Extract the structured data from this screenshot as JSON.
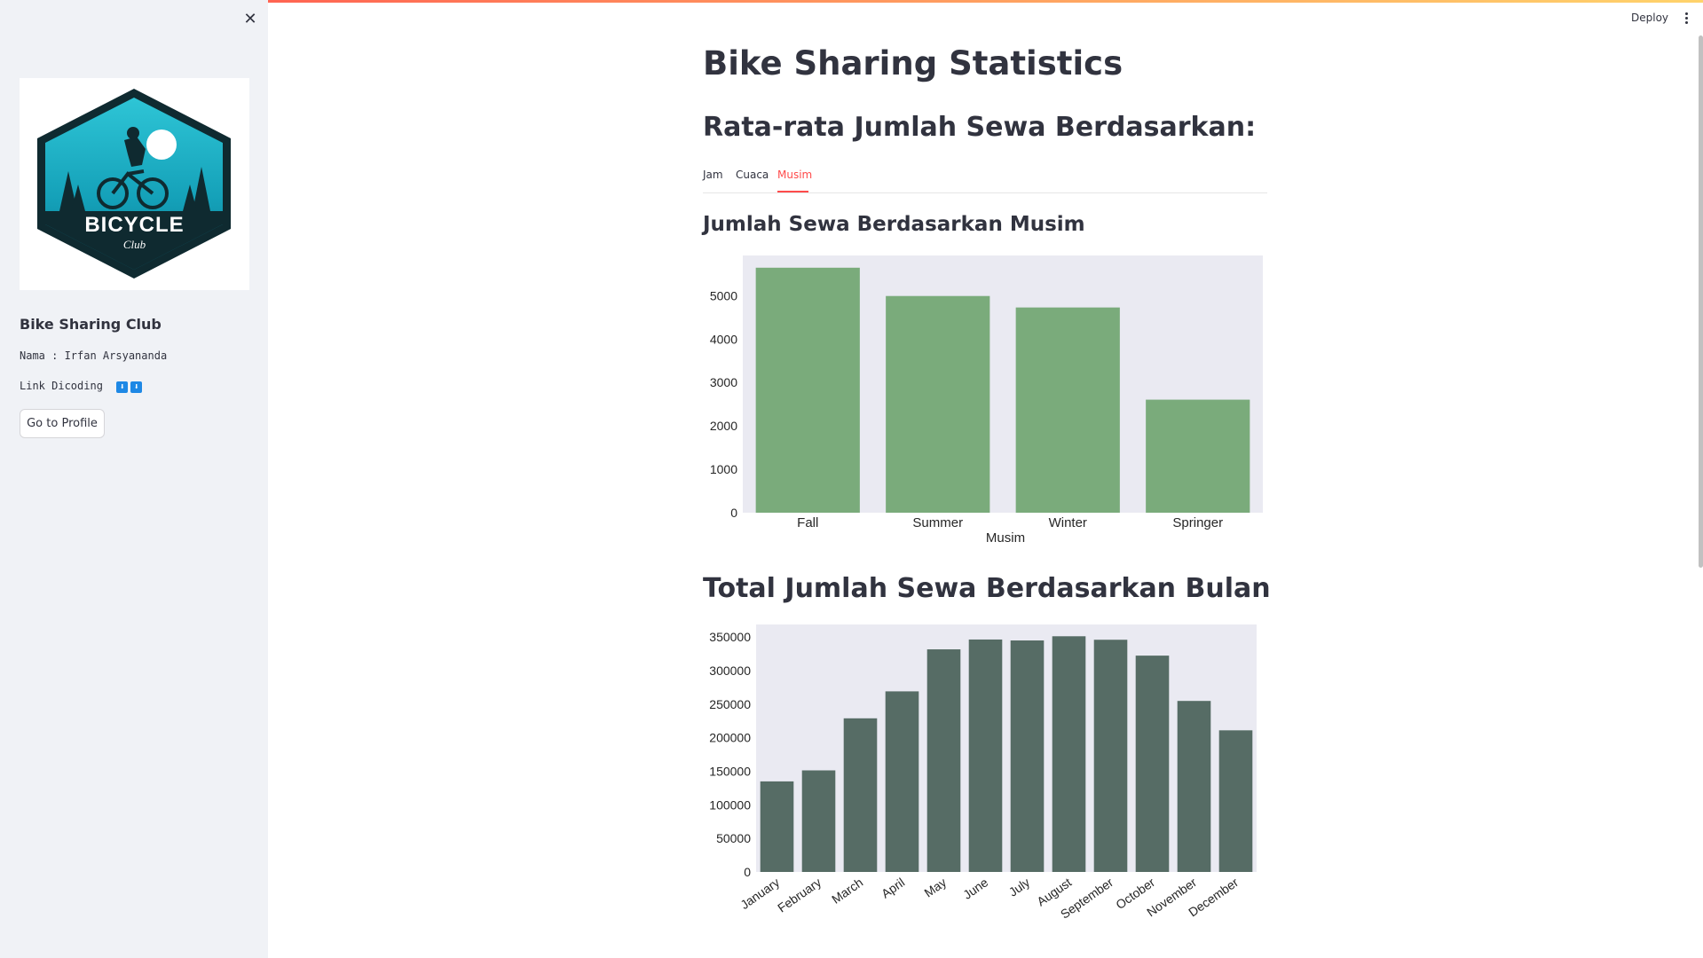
{
  "sidebar": {
    "close_icon": "close-icon",
    "logo": {
      "text_main": "BICYCLE",
      "text_sub": "Club"
    },
    "title": "Bike Sharing Club",
    "name_line": "Nama : Irfan Arsyananda",
    "link_line": "Link Dicoding",
    "link_icons": [
      "download-icon",
      "download-icon"
    ],
    "profile_button": "Go to Profile"
  },
  "header": {
    "deploy": "Deploy",
    "menu_icon": "kebab-menu-icon"
  },
  "main": {
    "title": "Bike Sharing Statistics",
    "subtitle": "Rata-rata Jumlah Sewa Berdasarkan:",
    "tabs": [
      {
        "label": "Jam",
        "active": false
      },
      {
        "label": "Cuaca",
        "active": false
      },
      {
        "label": "Musim",
        "active": true
      }
    ],
    "season_heading": "Jumlah Sewa Berdasarkan Musim",
    "month_heading": "Total Jumlah Sewa Berdasarkan Bulan"
  },
  "colors": {
    "accent": "#ff4b4b",
    "season_bar": "#7aab7b",
    "month_bar": "#566c65",
    "plot_bg": "#eaeaf2",
    "sidebar_bg": "#f0f2f6"
  },
  "chart_data": [
    {
      "type": "bar",
      "categories": [
        "Fall",
        "Summer",
        "Winter",
        "Springer"
      ],
      "values": [
        5644,
        4992,
        4728,
        2604
      ],
      "xlabel": "Musim",
      "ylabel": "",
      "ylim": [
        0,
        5926
      ],
      "yticks": [
        0,
        1000,
        2000,
        3000,
        4000,
        5000
      ],
      "grid": false
    },
    {
      "type": "bar",
      "categories": [
        "January",
        "February",
        "March",
        "April",
        "May",
        "June",
        "July",
        "August",
        "September",
        "October",
        "November",
        "December"
      ],
      "values": [
        134933,
        151352,
        228920,
        269094,
        331686,
        346342,
        344948,
        351194,
        345991,
        322352,
        254831,
        211036
      ],
      "xlabel": "",
      "ylabel": "",
      "ylim": [
        0,
        368754
      ],
      "yticks": [
        0,
        50000,
        100000,
        150000,
        200000,
        250000,
        300000,
        350000
      ],
      "grid": false
    }
  ]
}
